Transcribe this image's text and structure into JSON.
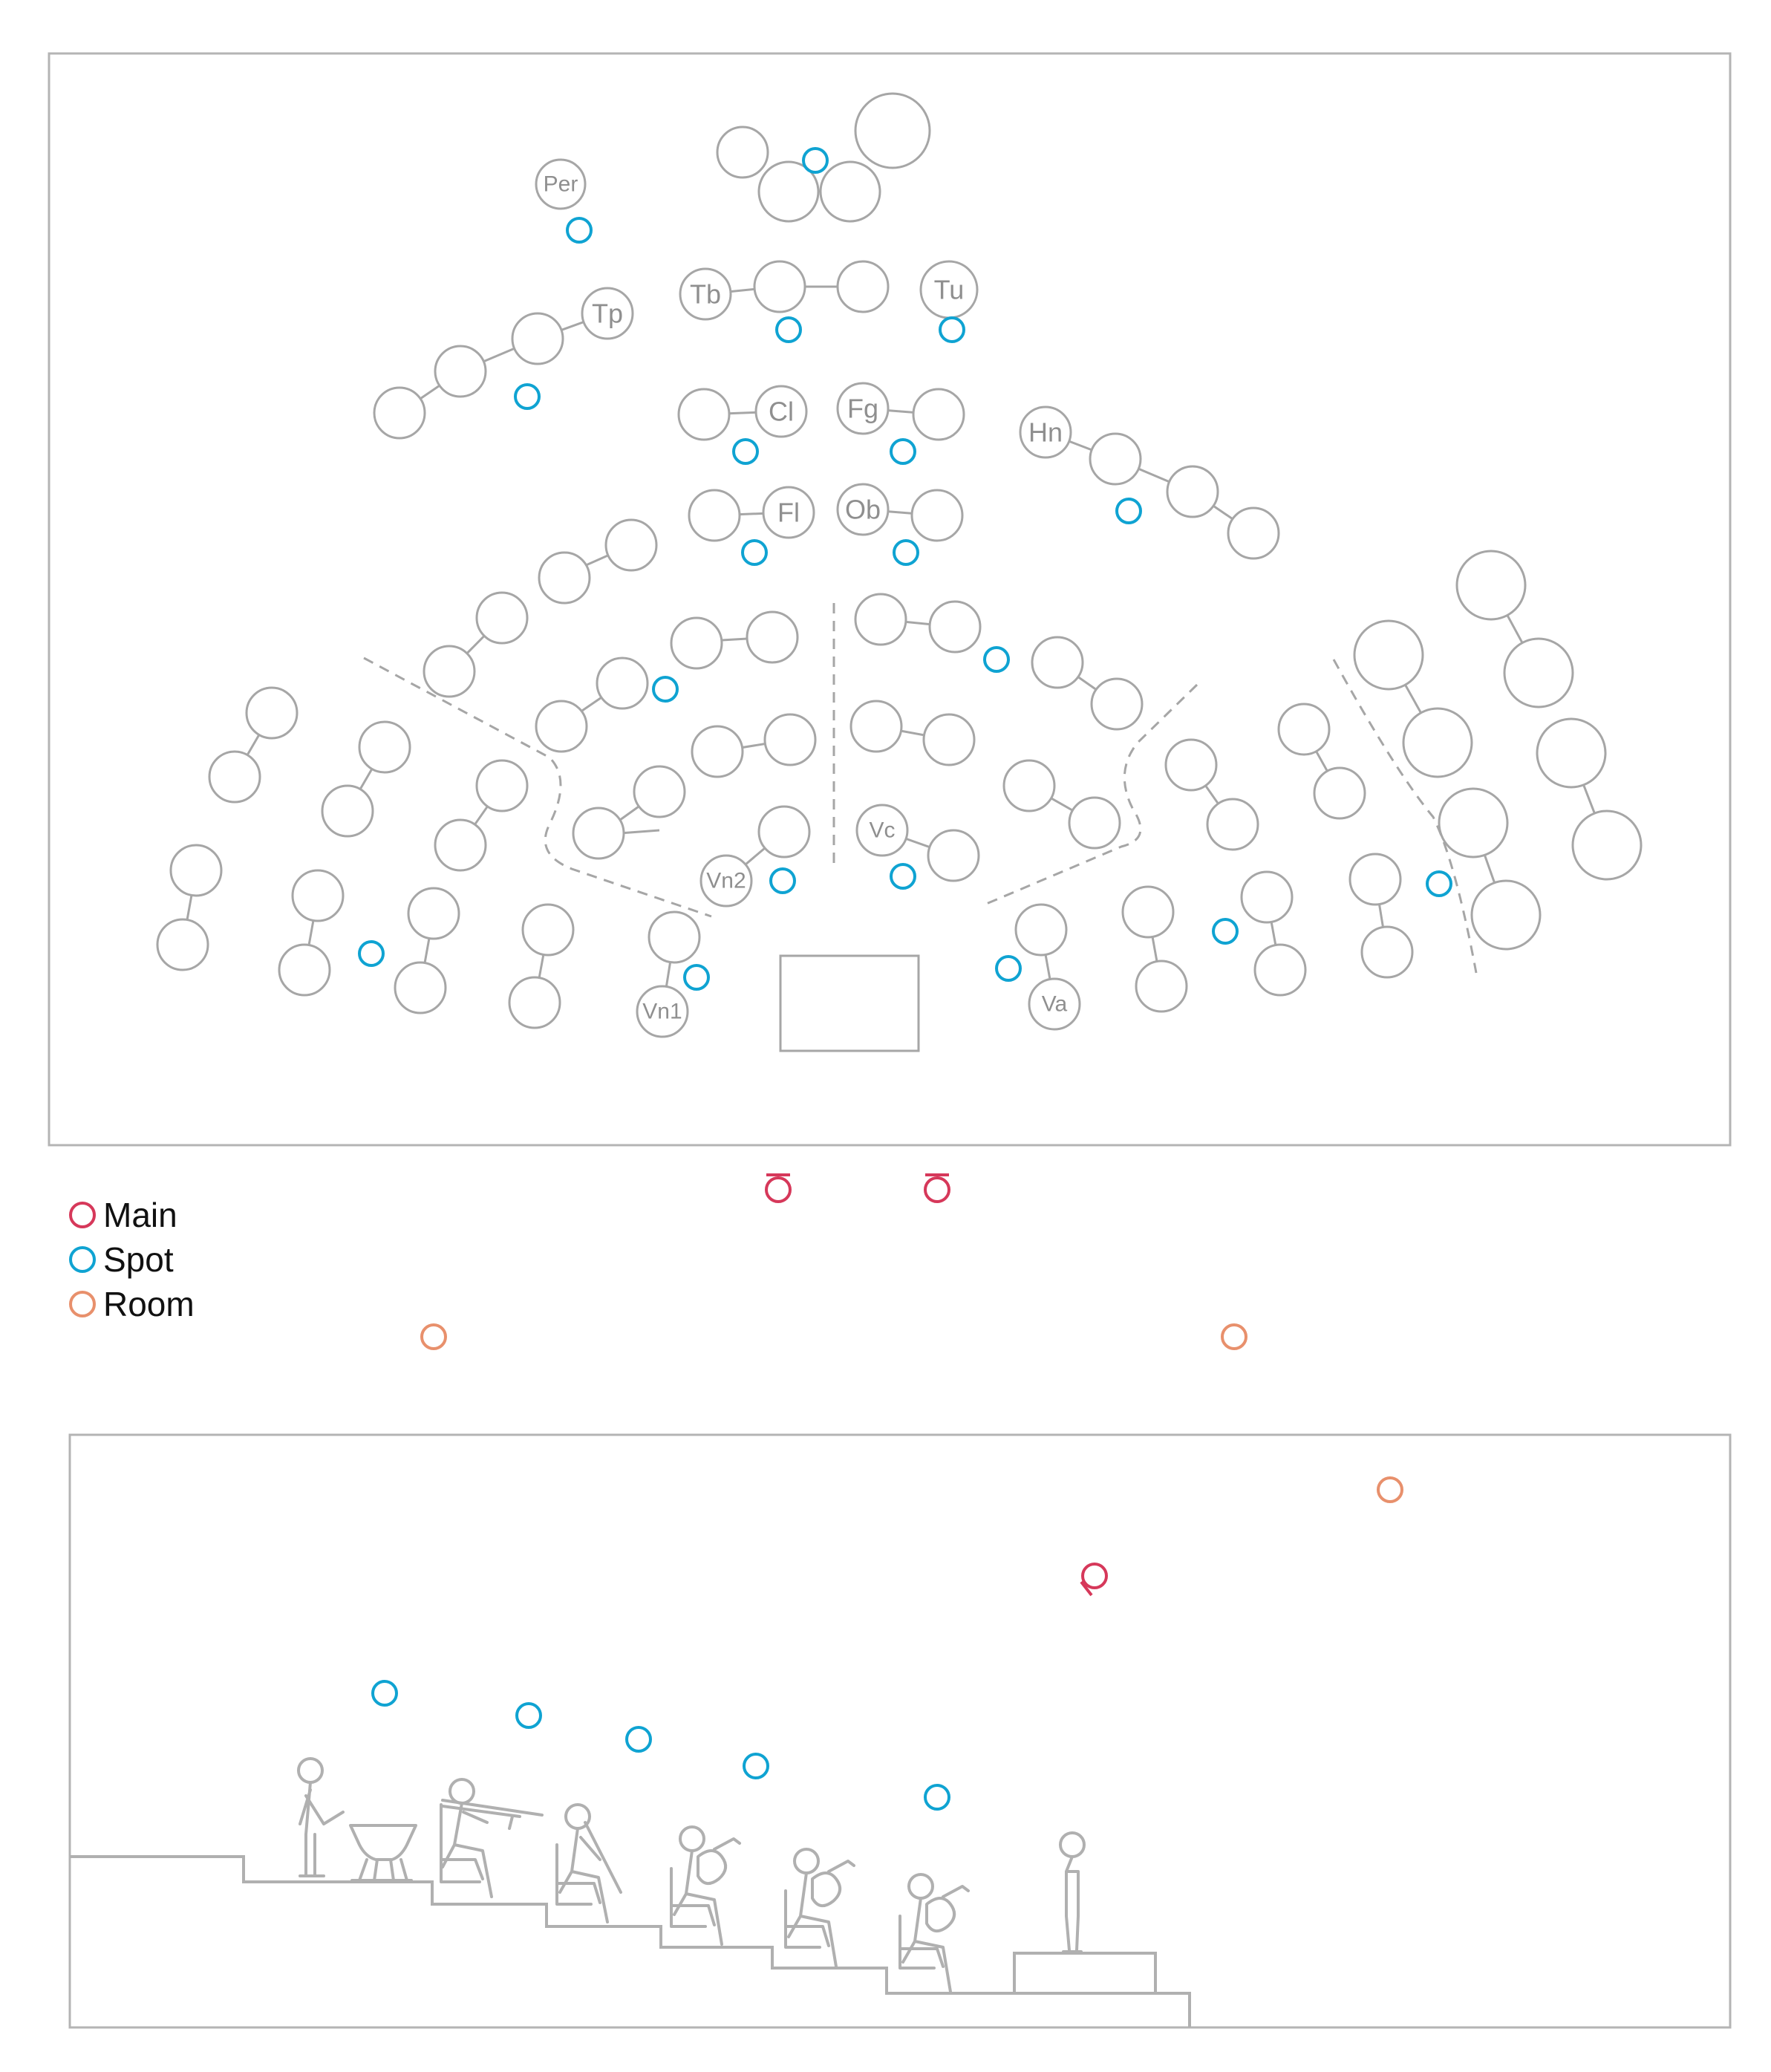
{
  "legend": {
    "items": [
      {
        "label": "Main",
        "color": "#d6385a"
      },
      {
        "label": "Spot",
        "color": "#0fa3d2"
      },
      {
        "label": "Room",
        "color": "#e8906c"
      }
    ]
  },
  "sections": {
    "per": "Per",
    "tp": "Tp",
    "tb": "Tb",
    "tu": "Tu",
    "cl": "Cl",
    "fg": "Fg",
    "hn": "Hn",
    "fl": "Fl",
    "ob": "Ob",
    "vn2": "Vn2",
    "vc": "Vc",
    "vn1": "Vn1",
    "va": "Va"
  },
  "colors": {
    "main": "#d6385a",
    "spot": "#0fa3d2",
    "room": "#e8906c",
    "outline": "#a6a6a6"
  },
  "icons": [
    "conductor-podium",
    "musician-figure",
    "timpani",
    "trombone",
    "clarinet",
    "violin"
  ]
}
